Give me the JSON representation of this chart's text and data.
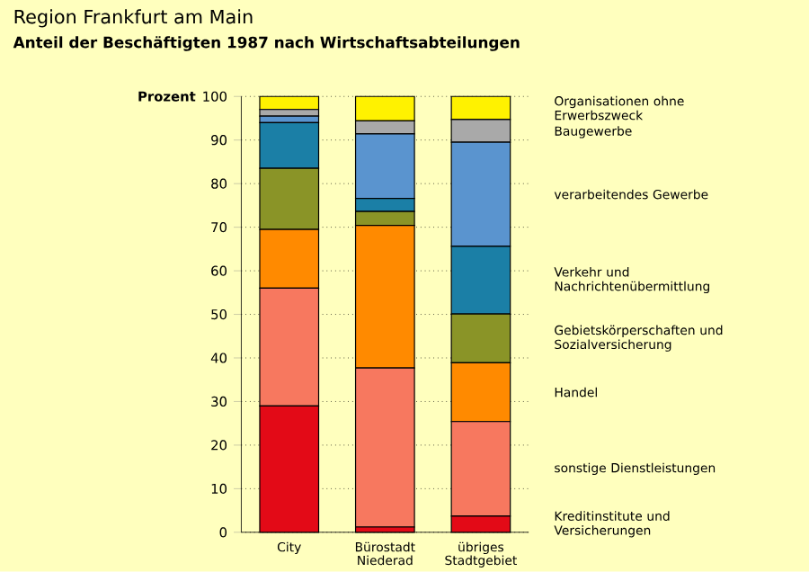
{
  "chart_data": {
    "type": "bar",
    "stacked": true,
    "title": "Region Frankfurt am Main",
    "subtitle": "Anteil der Beschäftigten 1987 nach Wirtschaftsabteilungen",
    "ylabel": "Prozent",
    "categories": [
      "City",
      "Bürostadt Niederad",
      "übriges Stadtgebiet"
    ],
    "series": [
      {
        "name": "Kreditinstitute und Versicherungen",
        "color": "#e30a17",
        "values": [
          29,
          1.2,
          3.7
        ]
      },
      {
        "name": "sonstige Dienstleistungen",
        "color": "#f7785f",
        "values": [
          27,
          36.5,
          21.7
        ]
      },
      {
        "name": "Handel",
        "color": "#ff8a00",
        "values": [
          13.5,
          32.7,
          13.5
        ]
      },
      {
        "name": "Gebietskörperschaften und Sozialversicherung",
        "color": "#8a9427",
        "values": [
          14,
          3.2,
          11.2
        ]
      },
      {
        "name": "Verkehr und Nachrichtenübermittlung",
        "color": "#1b7fa6",
        "values": [
          10.5,
          3,
          15.5
        ]
      },
      {
        "name": "verarbeitendes Gewerbe",
        "color": "#5a94cf",
        "values": [
          1.5,
          14.8,
          23.9
        ]
      },
      {
        "name": "Baugewerbe",
        "color": "#a9a9a9",
        "values": [
          1.5,
          3,
          5.2
        ]
      },
      {
        "name": "Organisationen ohne Erwerbszweck",
        "color": "#fff200",
        "values": [
          3,
          5.6,
          5.3
        ]
      }
    ],
    "ylim": [
      0,
      100
    ],
    "yticks": [
      0,
      10,
      20,
      30,
      40,
      50,
      60,
      70,
      80,
      90,
      100
    ],
    "grid": "y",
    "line_style": "dotted"
  }
}
